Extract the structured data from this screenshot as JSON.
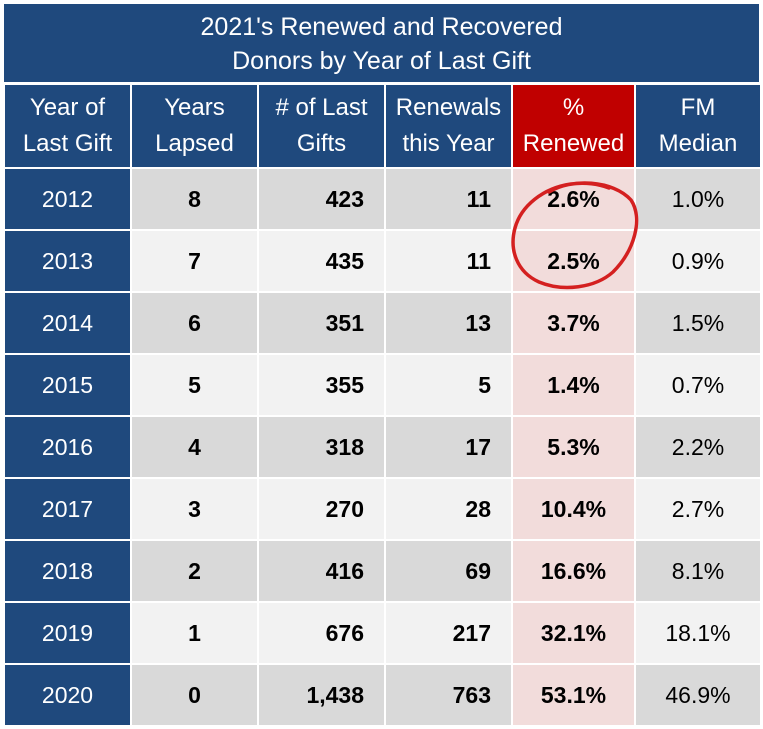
{
  "title": {
    "line1": "2021's Renewed and Recovered",
    "line2": "Donors by Year of Last Gift"
  },
  "headers": {
    "year": [
      "Year of",
      "Last Gift"
    ],
    "lapsed": [
      "Years",
      "Lapsed"
    ],
    "gifts": [
      "# of Last",
      "Gifts"
    ],
    "renewals": [
      "Renewals",
      "this Year"
    ],
    "pct": [
      "%",
      "Renewed"
    ],
    "fm": [
      "FM",
      "Median"
    ]
  },
  "rows": [
    {
      "year": "2012",
      "lapsed": "8",
      "gifts": "423",
      "renewals": "11",
      "pct": "2.6%",
      "fm": "1.0%"
    },
    {
      "year": "2013",
      "lapsed": "7",
      "gifts": "435",
      "renewals": "11",
      "pct": "2.5%",
      "fm": "0.9%"
    },
    {
      "year": "2014",
      "lapsed": "6",
      "gifts": "351",
      "renewals": "13",
      "pct": "3.7%",
      "fm": "1.5%"
    },
    {
      "year": "2015",
      "lapsed": "5",
      "gifts": "355",
      "renewals": "5",
      "pct": "1.4%",
      "fm": "0.7%"
    },
    {
      "year": "2016",
      "lapsed": "4",
      "gifts": "318",
      "renewals": "17",
      "pct": "5.3%",
      "fm": "2.2%"
    },
    {
      "year": "2017",
      "lapsed": "3",
      "gifts": "270",
      "renewals": "28",
      "pct": "10.4%",
      "fm": "2.7%"
    },
    {
      "year": "2018",
      "lapsed": "2",
      "gifts": "416",
      "renewals": "69",
      "pct": "16.6%",
      "fm": "8.1%"
    },
    {
      "year": "2019",
      "lapsed": "1",
      "gifts": "676",
      "renewals": "217",
      "pct": "32.1%",
      "fm": "18.1%"
    },
    {
      "year": "2020",
      "lapsed": "0",
      "gifts": "1,438",
      "renewals": "763",
      "pct": "53.1%",
      "fm": "46.9%"
    }
  ],
  "colors": {
    "header_blue": "#1f497d",
    "highlight_red": "#c00000",
    "pct_pink": "#f2dcdb",
    "annotation_red": "#d42020"
  }
}
